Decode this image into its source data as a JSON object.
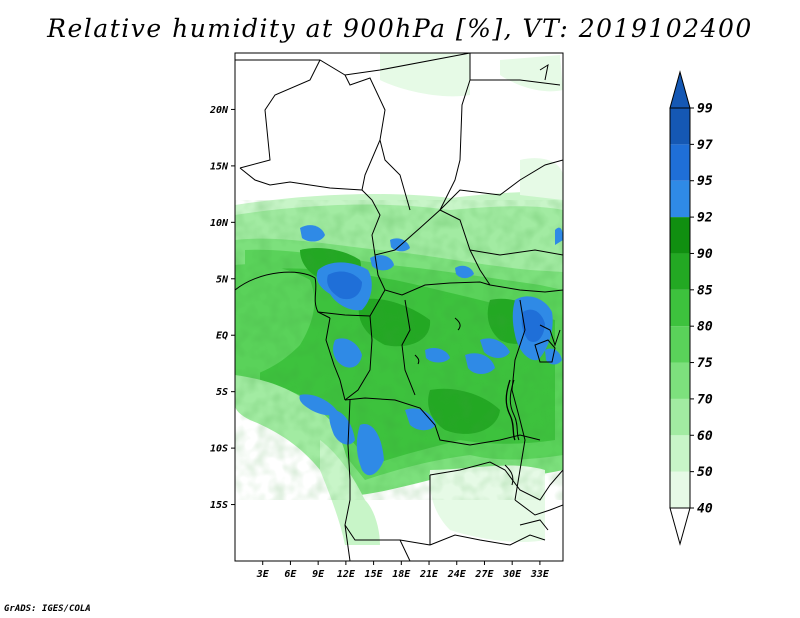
{
  "title": "Relative humidity at 900hPa [%], VT: 2019102400",
  "credit": "GrADS: IGES/COLA",
  "map": {
    "lon_range": [
      0,
      35.5
    ],
    "lat_range": [
      -20,
      25
    ],
    "lat_ticks": [
      {
        "value": 20,
        "label": "20N"
      },
      {
        "value": 15,
        "label": "15N"
      },
      {
        "value": 10,
        "label": "10N"
      },
      {
        "value": 5,
        "label": "5N"
      },
      {
        "value": 0,
        "label": "EQ"
      },
      {
        "value": -5,
        "label": "5S"
      },
      {
        "value": -10,
        "label": "10S"
      },
      {
        "value": -15,
        "label": "15S"
      }
    ],
    "lon_ticks": [
      {
        "value": 3,
        "label": "3E"
      },
      {
        "value": 6,
        "label": "6E"
      },
      {
        "value": 9,
        "label": "9E"
      },
      {
        "value": 12,
        "label": "12E"
      },
      {
        "value": 15,
        "label": "15E"
      },
      {
        "value": 18,
        "label": "18E"
      },
      {
        "value": 21,
        "label": "21E"
      },
      {
        "value": 24,
        "label": "24E"
      },
      {
        "value": 27,
        "label": "27E"
      },
      {
        "value": 30,
        "label": "30E"
      },
      {
        "value": 33,
        "label": "33E"
      }
    ]
  },
  "colorbar": {
    "levels": [
      "40",
      "50",
      "60",
      "70",
      "75",
      "80",
      "85",
      "90",
      "92",
      "95",
      "97",
      "99"
    ],
    "colors": [
      "#ffffff",
      "#e6fae6",
      "#c8f5c8",
      "#a2eba2",
      "#7de07d",
      "#5ad25a",
      "#3dc23d",
      "#23a823",
      "#108f10",
      "#2f8ae6",
      "#1f6fd8",
      "#1558b4"
    ]
  }
}
